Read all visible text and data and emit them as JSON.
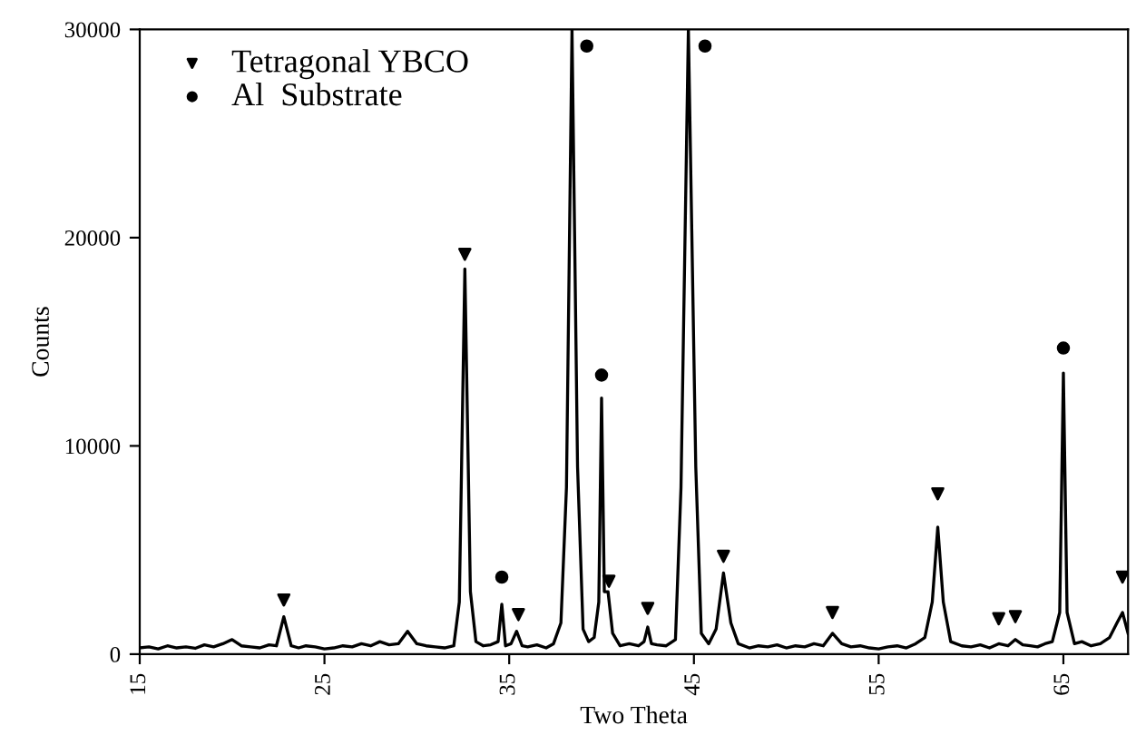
{
  "chart_data": {
    "type": "line",
    "xlabel": "Two Theta",
    "ylabel": "Counts",
    "xlim": [
      15,
      68.5
    ],
    "ylim": [
      0,
      30000
    ],
    "xticks": [
      15,
      25,
      35,
      45,
      55,
      65
    ],
    "yticks": [
      0,
      10000,
      20000,
      30000
    ],
    "grid": false,
    "legend": "top left",
    "series": [
      {
        "color": "#000000",
        "marker": "none",
        "x": [
          15,
          15.5,
          16,
          16.5,
          17,
          17.5,
          18,
          18.5,
          19,
          19.5,
          20,
          20.5,
          21,
          21.5,
          22,
          22.4,
          22.8,
          23.2,
          23.6,
          24,
          24.5,
          25,
          25.5,
          26,
          26.5,
          27,
          27.5,
          28,
          28.5,
          29,
          29.5,
          30,
          30.5,
          31,
          31.5,
          32,
          32.3,
          32.6,
          32.9,
          33.2,
          33.6,
          34,
          34.4,
          34.6,
          34.8,
          35.1,
          35.4,
          35.7,
          36,
          36.5,
          37,
          37.4,
          37.8,
          38.1,
          38.4,
          38.7,
          39,
          39.3,
          39.6,
          39.85,
          40.0,
          40.15,
          40.35,
          40.6,
          41,
          41.5,
          42,
          42.3,
          42.5,
          42.7,
          43,
          43.5,
          44,
          44.3,
          44.7,
          45.1,
          45.4,
          45.8,
          46.2,
          46.6,
          47,
          47.4,
          48,
          48.5,
          49,
          49.5,
          50,
          50.5,
          51,
          51.5,
          52,
          52.5,
          53,
          53.5,
          54,
          54.5,
          55,
          55.5,
          56,
          56.5,
          57,
          57.5,
          57.9,
          58.2,
          58.5,
          58.9,
          59.5,
          60,
          60.5,
          61,
          61.5,
          62,
          62.4,
          62.8,
          63.2,
          63.6,
          64,
          64.4,
          64.8,
          65.0,
          65.2,
          65.6,
          66,
          66.5,
          67,
          67.5,
          67.9,
          68.2,
          68.5
        ],
        "values": [
          300,
          350,
          250,
          400,
          300,
          350,
          280,
          450,
          350,
          500,
          700,
          400,
          350,
          300,
          450,
          400,
          1800,
          400,
          300,
          400,
          350,
          250,
          300,
          400,
          350,
          500,
          400,
          600,
          450,
          500,
          1100,
          500,
          400,
          350,
          300,
          400,
          2500,
          18500,
          3000,
          600,
          400,
          450,
          600,
          2400,
          400,
          500,
          1100,
          400,
          350,
          450,
          300,
          500,
          1500,
          8000,
          30000,
          9000,
          1200,
          600,
          800,
          2500,
          12300,
          3000,
          3000,
          1000,
          400,
          500,
          400,
          600,
          1300,
          500,
          450,
          400,
          700,
          8000,
          30000,
          9000,
          1000,
          500,
          1200,
          3900,
          1500,
          500,
          300,
          400,
          350,
          450,
          300,
          400,
          350,
          500,
          400,
          1000,
          500,
          350,
          400,
          300,
          250,
          350,
          400,
          300,
          500,
          800,
          2500,
          6100,
          2500,
          600,
          400,
          350,
          450,
          300,
          500,
          400,
          700,
          450,
          400,
          350,
          500,
          600,
          2000,
          13500,
          2000,
          500,
          600,
          400,
          500,
          800,
          1500,
          2000,
          1000
        ]
      },
      {
        "type": "scatter",
        "name": "Tetragonal YBCO",
        "color": "#000000",
        "marker": "triangle",
        "x": [
          22.8,
          32.6,
          35.5,
          40.4,
          42.5,
          46.6,
          52.5,
          58.2,
          61.5,
          62.4,
          68.2
        ],
        "values": [
          2600,
          19200,
          1900,
          3500,
          2200,
          4700,
          2000,
          7700,
          1700,
          1800,
          3700
        ]
      },
      {
        "type": "scatter",
        "name": "Al  Substrate",
        "color": "#000000",
        "marker": "circle",
        "x": [
          34.6,
          39.2,
          40.0,
          45.6,
          65.0
        ],
        "values": [
          3700,
          29200,
          13400,
          29200,
          14700
        ]
      }
    ]
  }
}
